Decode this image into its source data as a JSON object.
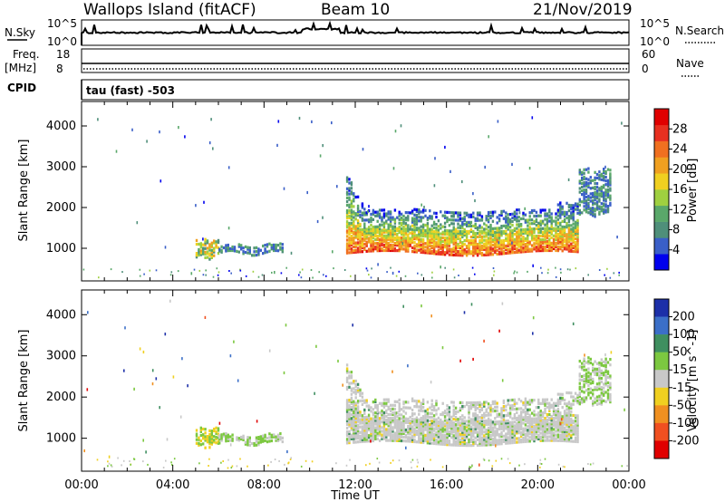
{
  "header": {
    "station": "Wallops Island (fitACF)",
    "beam": "Beam 10",
    "date": "21/Nov/2019"
  },
  "summary_panels": {
    "nsky_label": "N.Sky",
    "nsky_ticks": [
      "10^5",
      "10^0"
    ],
    "nsearch_label": "N.Search",
    "freq_label_line1": "Freq.",
    "freq_label_line2": "[MHz]",
    "freq_ticks": [
      "18",
      "8"
    ],
    "nave_label": "Nave",
    "nave_ticks": [
      "60",
      "0"
    ],
    "cpid_label": "CPID",
    "cpid_value": "tau (fast) -503"
  },
  "chart_data": [
    {
      "type": "heatmap",
      "title": "",
      "parameter": "Power",
      "xlabel": "Time UT",
      "ylabel": "Slant Range [km]",
      "x_ticks": [
        "00:00",
        "04:00",
        "08:00",
        "12:00",
        "16:00",
        "20:00",
        "00:00"
      ],
      "x_range_hours": [
        0,
        24
      ],
      "y_ticks": [
        1000,
        2000,
        3000,
        4000
      ],
      "ylim": [
        200,
        4600
      ],
      "colorbar": {
        "label": "Power [dB]",
        "ticks": [
          "4",
          "8",
          "12",
          "16",
          "20",
          "24",
          "28"
        ],
        "range": [
          0,
          32
        ],
        "colors": [
          "#0000ee",
          "#3a5fc8",
          "#4f8f7a",
          "#5aa86a",
          "#9fd040",
          "#f0d020",
          "#f0a020",
          "#f07020",
          "#e83020",
          "#e00000"
        ]
      },
      "echo_regions": [
        {
          "t_start": 5.0,
          "t_end": 6.0,
          "range_low": 750,
          "range_high": 1200,
          "dominant": "8-20 dB"
        },
        {
          "t_start": 6.0,
          "t_end": 8.8,
          "range_low": 850,
          "range_high": 1050,
          "dominant": "4-12 dB"
        },
        {
          "t_start": 11.6,
          "t_end": 21.8,
          "range_low": 850,
          "range_high": 1900,
          "dominant": "8-28 dB"
        },
        {
          "t_start": 21.8,
          "t_end": 23.2,
          "range_low": 1800,
          "range_high": 2900,
          "dominant": "4-12 dB"
        }
      ]
    },
    {
      "type": "heatmap",
      "title": "",
      "parameter": "Velocity",
      "xlabel": "Time UT",
      "ylabel": "Slant Range [km]",
      "x_ticks": [
        "00:00",
        "04:00",
        "08:00",
        "12:00",
        "16:00",
        "20:00",
        "00:00"
      ],
      "x_range_hours": [
        0,
        24
      ],
      "y_ticks": [
        1000,
        2000,
        3000,
        4000
      ],
      "ylim": [
        200,
        4600
      ],
      "colorbar": {
        "label": "Velocity [m s^-1]",
        "ticks": [
          "200",
          "100",
          "50",
          "15",
          "-15",
          "-50",
          "-100",
          "-200"
        ],
        "colors": [
          "#1c2fa8",
          "#3b6fc8",
          "#3f8f60",
          "#7cc840",
          "#c8c8c8",
          "#f0d020",
          "#f09020",
          "#f05020",
          "#e00000"
        ]
      },
      "echo_regions": [
        {
          "t_start": 5.0,
          "t_end": 6.0,
          "range_low": 750,
          "range_high": 1200,
          "dominant": "15 to 100 m/s"
        },
        {
          "t_start": 6.0,
          "t_end": 8.8,
          "range_low": 850,
          "range_high": 1050,
          "dominant": "15 to 50 m/s"
        },
        {
          "t_start": 11.6,
          "t_end": 21.8,
          "range_low": 850,
          "range_high": 1900,
          "dominant": "-15 to 15 m/s"
        },
        {
          "t_start": 21.8,
          "t_end": 23.2,
          "range_low": 1800,
          "range_high": 2900,
          "dominant": "-15 to 50 m/s"
        }
      ]
    }
  ]
}
